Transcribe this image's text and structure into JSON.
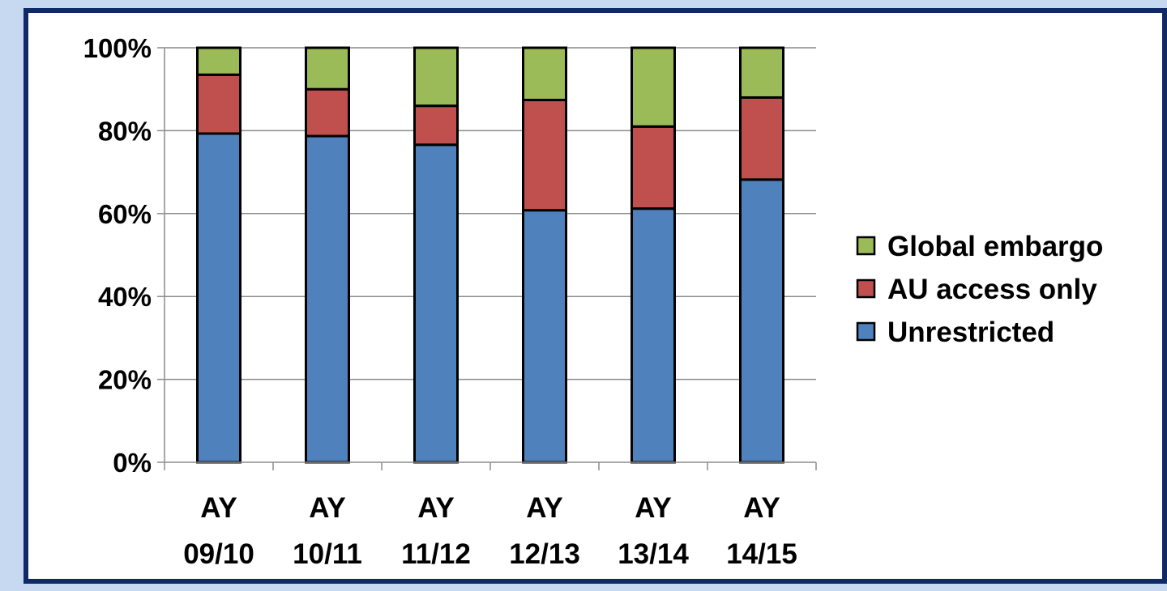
{
  "chart_data": {
    "type": "bar",
    "stacked": true,
    "categories": [
      [
        "AY",
        "09/10"
      ],
      [
        "AY",
        "10/11"
      ],
      [
        "AY",
        "11/12"
      ],
      [
        "AY",
        "12/13"
      ],
      [
        "AY",
        "13/14"
      ],
      [
        "AY",
        "14/15"
      ]
    ],
    "series": [
      {
        "name": "Unrestricted",
        "color": "#4f81bd",
        "values": [
          79.3,
          78.7,
          76.6,
          60.8,
          61.2,
          68.2
        ]
      },
      {
        "name": "AU access only",
        "color": "#c0504d",
        "values": [
          14.2,
          11.3,
          9.4,
          26.6,
          19.8,
          19.8
        ]
      },
      {
        "name": "Global embargo",
        "color": "#9bbb59",
        "values": [
          6.5,
          10.0,
          14.0,
          12.6,
          19.0,
          12.0
        ]
      }
    ],
    "yticks": [
      "0%",
      "20%",
      "40%",
      "60%",
      "80%",
      "100%"
    ],
    "ylim": [
      0,
      100
    ],
    "grid": true,
    "legend_position": "right",
    "legend_order": [
      "Global embargo",
      "AU access only",
      "Unrestricted"
    ]
  }
}
